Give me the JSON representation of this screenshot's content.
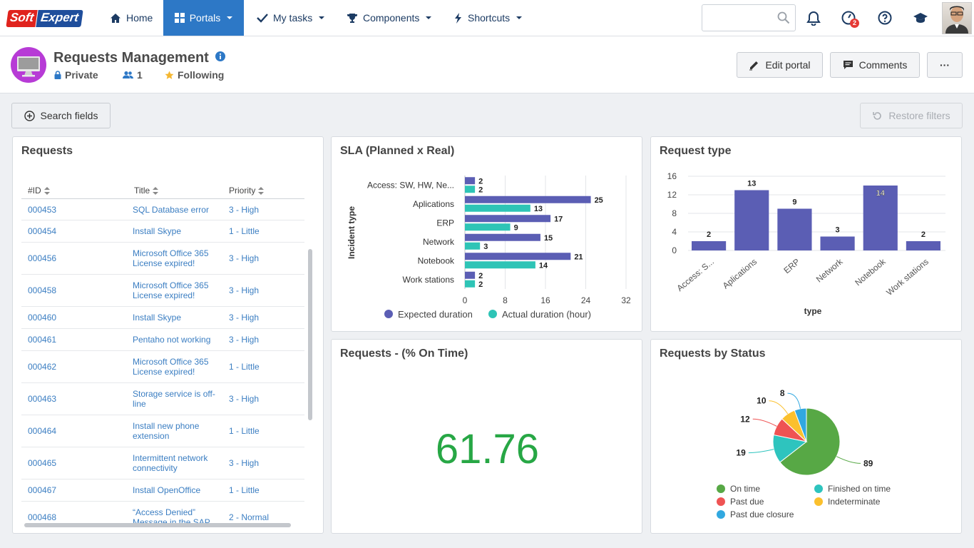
{
  "nav": {
    "logo_left": "Soft",
    "logo_right": "Expert",
    "home": "Home",
    "portals": "Portals",
    "my_tasks": "My tasks",
    "components": "Components",
    "shortcuts": "Shortcuts",
    "notification_badge": "2"
  },
  "header": {
    "title": "Requests Management",
    "privacy": "Private",
    "members": "1",
    "following": "Following",
    "edit_portal": "Edit portal",
    "comments": "Comments",
    "more": "···"
  },
  "toolbar": {
    "search_fields": "Search fields",
    "restore_filters": "Restore filters"
  },
  "requests_table": {
    "title": "Requests",
    "columns": [
      "#ID",
      "Title",
      "Priority"
    ],
    "rows": [
      {
        "id": "000453",
        "title": "SQL Database error",
        "priority": "3 - High"
      },
      {
        "id": "000454",
        "title": "Install Skype",
        "priority": "1 - Little"
      },
      {
        "id": "000456",
        "title": "Microsoft Office 365 License expired!",
        "priority": "3 - High"
      },
      {
        "id": "000458",
        "title": "Microsoft Office 365 License expired!",
        "priority": "3 - High"
      },
      {
        "id": "000460",
        "title": "Install Skype",
        "priority": "3 - High"
      },
      {
        "id": "000461",
        "title": "Pentaho not working",
        "priority": "3 - High"
      },
      {
        "id": "000462",
        "title": "Microsoft Office 365 License expired!",
        "priority": "1 - Little"
      },
      {
        "id": "000463",
        "title": "Storage service is off-line",
        "priority": "3 - High"
      },
      {
        "id": "000464",
        "title": "Install new phone extension",
        "priority": "1 - Little"
      },
      {
        "id": "000465",
        "title": "Intermittent network connectivity",
        "priority": "3 - High"
      },
      {
        "id": "000467",
        "title": "Install OpenOffice",
        "priority": "1 - Little"
      },
      {
        "id": "000468",
        "title": "“Access Denied” Message in the SAP",
        "priority": "2 - Normal"
      }
    ]
  },
  "kpi": {
    "title": "Requests - (% On Time)",
    "value": "61.76"
  },
  "colors": {
    "accent": "#2d78c6",
    "expected": "#5b5eb4",
    "actual": "#2ec4b6",
    "kpi": "#27a745",
    "on_time": "#57a845",
    "finished_on_time": "#2ec4be",
    "past_due": "#ef5353",
    "indeterminate": "#fbc02d",
    "past_due_closure": "#31a8e0"
  },
  "chart_data": [
    {
      "type": "bar",
      "orientation": "horizontal",
      "title": "SLA (Planned x Real)",
      "ylabel": "Incident type",
      "categories": [
        "Access: SW, HW, Ne...",
        "Aplications",
        "ERP",
        "Network",
        "Notebook",
        "Work stations"
      ],
      "series": [
        {
          "name": "Expected duration",
          "values": [
            2,
            25,
            17,
            15,
            21,
            2
          ]
        },
        {
          "name": "Actual duration (hour)",
          "values": [
            2,
            13,
            9,
            3,
            14,
            2
          ]
        }
      ],
      "xlim": [
        0,
        32
      ],
      "xticks": [
        0,
        8,
        16,
        24,
        32
      ],
      "legend": "bottom",
      "grid": true
    },
    {
      "type": "bar",
      "title": "Request type",
      "xlabel": "type",
      "categories": [
        "Access: S...",
        "Aplications",
        "ERP",
        "Network",
        "Notebook",
        "Work stations"
      ],
      "values": [
        2,
        13,
        9,
        3,
        14,
        2
      ],
      "ylim": [
        0,
        16
      ],
      "yticks": [
        0,
        4,
        8,
        12,
        16
      ],
      "grid": true
    },
    {
      "type": "pie",
      "title": "Requests by Status",
      "categories": [
        "On time",
        "Finished on time",
        "Past due",
        "Indeterminate",
        "Past due closure"
      ],
      "values": [
        89,
        19,
        12,
        10,
        8
      ],
      "legend": "bottom"
    }
  ]
}
